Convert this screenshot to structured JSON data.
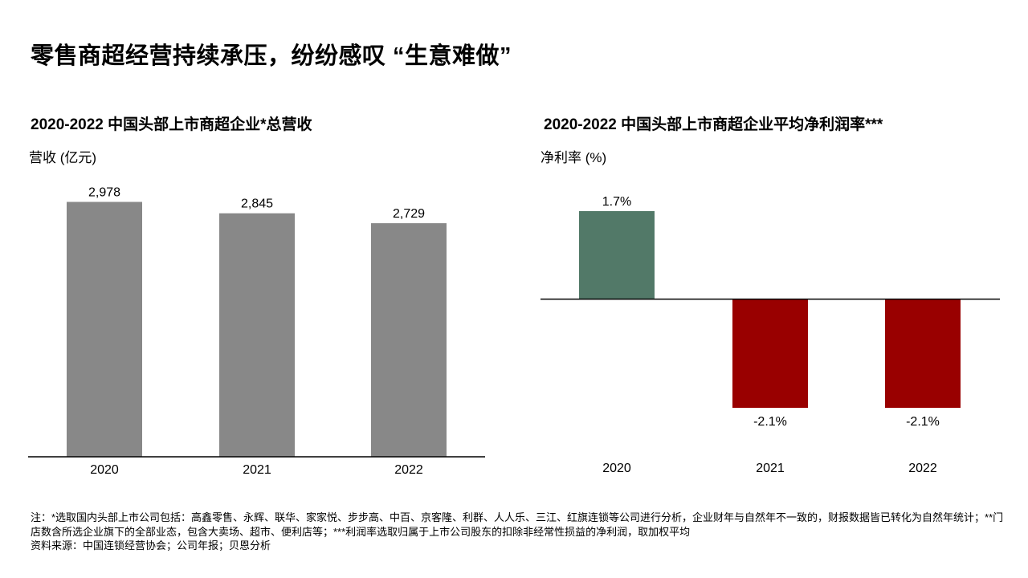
{
  "page": {
    "title": "零售商超经营持续承压，纷纷感叹 “生意难做”"
  },
  "chart_data": [
    {
      "type": "bar",
      "title": "2020-2022 中国头部上市商超企业*总营收",
      "ylabel": "营收 (亿元)",
      "categories": [
        "2020",
        "2021",
        "2022"
      ],
      "values": [
        2978,
        2845,
        2729
      ],
      "value_labels": [
        "2,978",
        "2,845",
        "2,729"
      ],
      "ylim": [
        0,
        3100
      ],
      "colors": [
        "#888888",
        "#888888",
        "#888888"
      ],
      "grid": false
    },
    {
      "type": "bar",
      "title": "2020-2022 中国头部上市商超企业平均净利润率***",
      "ylabel": "净利率 (%)",
      "categories": [
        "2020",
        "2021",
        "2022"
      ],
      "values": [
        1.7,
        -2.1,
        -2.1
      ],
      "value_labels": [
        "1.7%",
        "-2.1%",
        "-2.1%"
      ],
      "ylim": [
        -2.1,
        1.7
      ],
      "colors": [
        "#527968",
        "#990000",
        "#990000"
      ],
      "grid": false
    }
  ],
  "footnotes": {
    "note": "注：*选取国内头部上市公司包括：高鑫零售、永辉、联华、家家悦、步步高、中百、京客隆、利群、人人乐、三江、红旗连锁等公司进行分析，企业财年与自然年不一致的，财报数据皆已转化为自然年统计；**门店数含所选企业旗下的全部业态，包含大卖场、超市、便利店等；***利润率选取归属于上市公司股东的扣除非经常性损益的净利润，取加权平均",
    "source": "资料来源：中国连锁经营协会；公司年报；贝恩分析"
  }
}
